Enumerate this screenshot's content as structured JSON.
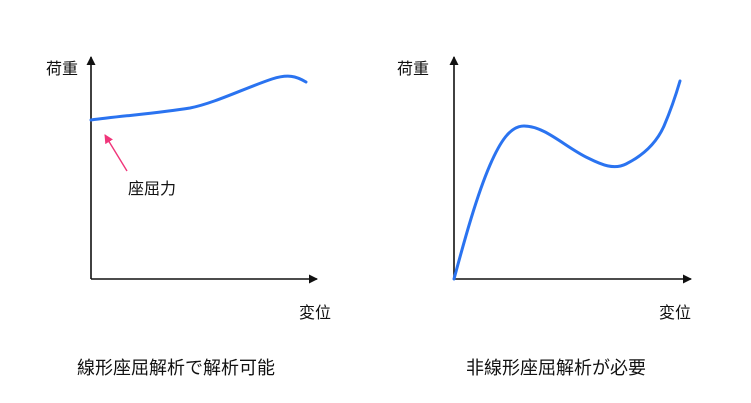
{
  "colors": {
    "curve": "#2a73f0",
    "axis": "#111111",
    "callout": "#f0357a"
  },
  "left_panel": {
    "y_label": "荷重",
    "x_label": "変位",
    "callout": "座屈力",
    "caption": "線形座屈解析で解析可能"
  },
  "right_panel": {
    "y_label": "荷重",
    "x_label": "変位",
    "caption": "非線形座屈解析が必要"
  }
}
